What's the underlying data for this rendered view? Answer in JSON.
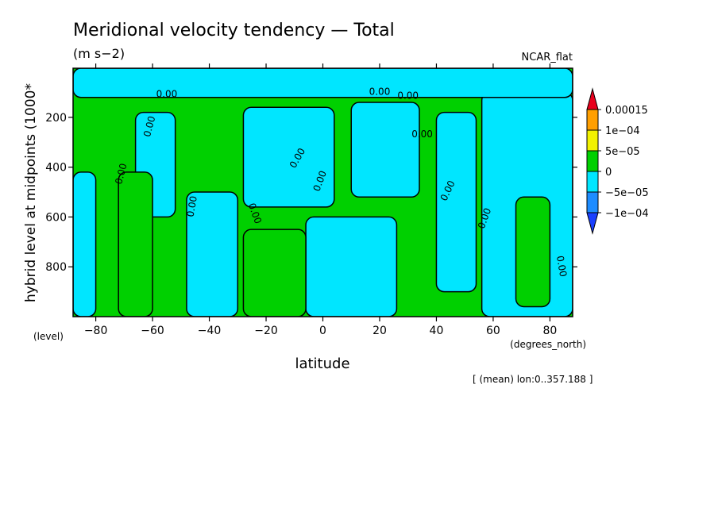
{
  "chart_data": {
    "type": "heatmap",
    "title": "Meridional velocity tendency — Total",
    "units": "(m s−2)",
    "colormap_name": "NCAR_flat",
    "xlabel": "latitude",
    "xunits": "(degrees_north)",
    "ylabel": "hybrid level at midpoints (1000*",
    "yunits": "(level)",
    "footer": "[ (mean) lon:0..357.188 ]",
    "xlim": [
      -88,
      88
    ],
    "ylim": [
      1000,
      3
    ],
    "xticks": [
      -80,
      -60,
      -40,
      -20,
      0,
      20,
      40,
      60,
      80
    ],
    "yticks": [
      200,
      400,
      600,
      800
    ],
    "contour_label": "0.00",
    "colorbar": {
      "labels": [
        "0.00015",
        "1e−04",
        "5e−05",
        "0",
        "−5e−05",
        "−1e−04"
      ],
      "colors": [
        "#e8001c",
        "#ff9f00",
        "#f2f200",
        "#00d000",
        "#00e6ff",
        "#1e8cff",
        "#1a40ff"
      ]
    },
    "bands": [
      {
        "sign": "neg",
        "x": [
          -88,
          -80
        ],
        "y": [
          420,
          1000
        ]
      },
      {
        "sign": "neg",
        "x": [
          -66,
          -52
        ],
        "y": [
          180,
          600
        ]
      },
      {
        "sign": "neg",
        "x": [
          -48,
          -30
        ],
        "y": [
          500,
          1000
        ]
      },
      {
        "sign": "neg",
        "x": [
          -28,
          4
        ],
        "y": [
          160,
          560
        ]
      },
      {
        "sign": "neg",
        "x": [
          -6,
          26
        ],
        "y": [
          600,
          1000
        ]
      },
      {
        "sign": "neg",
        "x": [
          10,
          34
        ],
        "y": [
          140,
          520
        ]
      },
      {
        "sign": "neg",
        "x": [
          40,
          54
        ],
        "y": [
          180,
          900
        ]
      },
      {
        "sign": "neg",
        "x": [
          56,
          88
        ],
        "y": [
          100,
          1000
        ]
      },
      {
        "sign": "neg",
        "x": [
          -88,
          88
        ],
        "y": [
          3,
          120
        ]
      },
      {
        "sign": "pos",
        "x": [
          -72,
          -60
        ],
        "y": [
          420,
          1000
        ]
      },
      {
        "sign": "pos",
        "x": [
          -28,
          -6
        ],
        "y": [
          650,
          1000
        ]
      },
      {
        "sign": "pos",
        "x": [
          68,
          80
        ],
        "y": [
          520,
          960
        ]
      }
    ]
  }
}
